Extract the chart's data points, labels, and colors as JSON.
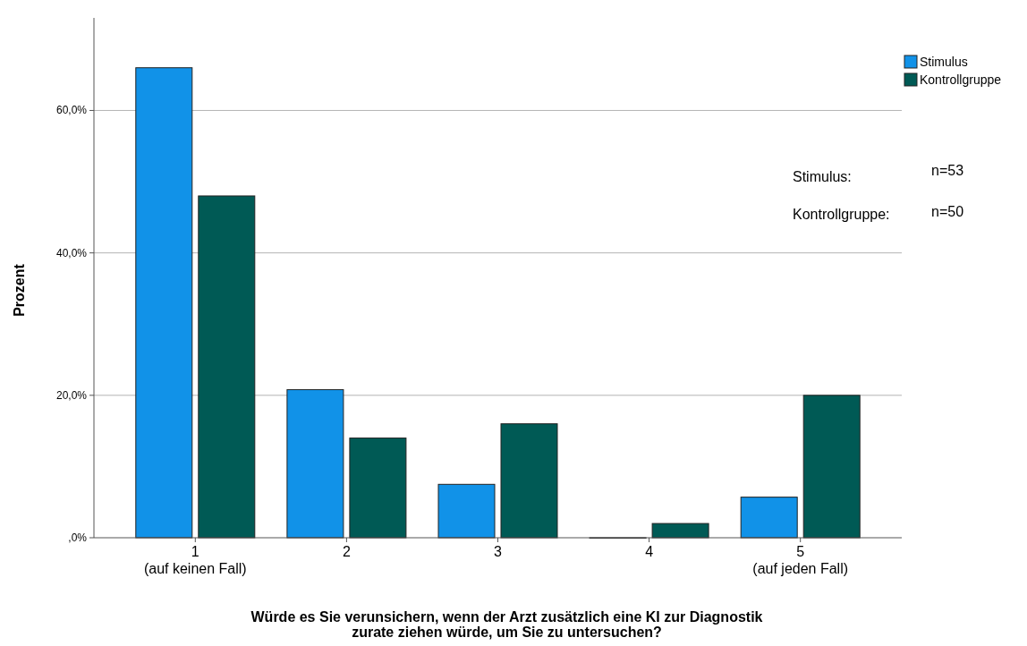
{
  "chart_data": {
    "type": "bar",
    "xlabel": "Würde es Sie verunsichern, wenn der Arzt zusätzlich eine KI zur Diagnostik zurate ziehen würde, um Sie zu untersuchen?",
    "ylabel": "Prozent",
    "categories": [
      "1\n(auf keinen Fall)",
      "2",
      "3",
      "4",
      "5\n(auf jeden Fall)"
    ],
    "series": [
      {
        "name": "Stimulus",
        "color": "#1192e8",
        "values": [
          66.0,
          20.8,
          7.5,
          0,
          5.7
        ]
      },
      {
        "name": "Kontrollgruppe",
        "color": "#005a55",
        "values": [
          48,
          14,
          16,
          2,
          20
        ]
      }
    ],
    "ylim": [
      0,
      73
    ],
    "yticks": [
      {
        "value": 0,
        "label": ",0%"
      },
      {
        "value": 20,
        "label": "20,0%"
      },
      {
        "value": 40,
        "label": "40,0%"
      },
      {
        "value": 60,
        "label": "60,0%"
      }
    ],
    "grid": "y",
    "legend": "top right",
    "annotations": [
      "Stimulus:",
      "n=53",
      "Kontrollgruppe:",
      "n=50"
    ]
  }
}
